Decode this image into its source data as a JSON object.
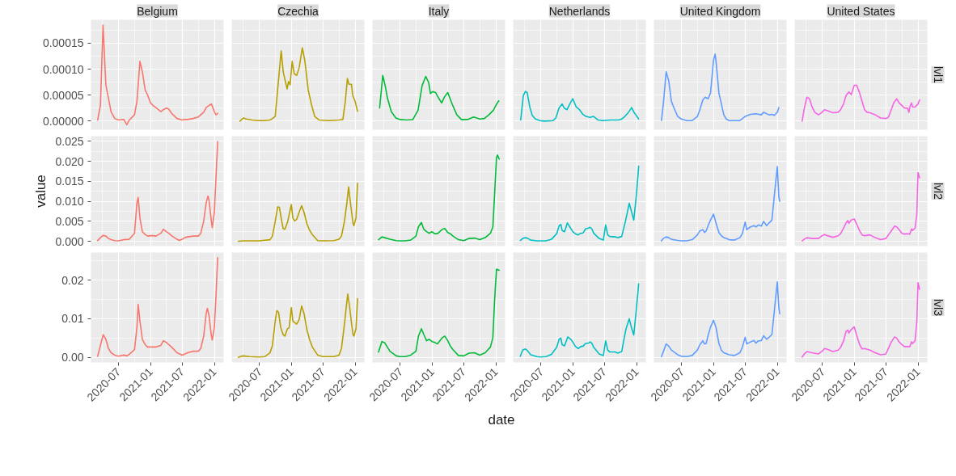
{
  "chart_data": [
    {
      "type": "line",
      "title": "Belgium",
      "color": "#F8766D",
      "grid": true,
      "tick_labels": "y",
      "xlim": [
        "2020-01-26",
        "2022-02-23"
      ],
      "xticks": [
        "2020-07",
        "2021-01",
        "2021-07",
        "2022-01"
      ],
      "ylim": [
        -1.66e-05,
        0.000195
      ],
      "yticks": [
        {
          "value": 0,
          "label": "0.00000"
        },
        {
          "value": 5e-05,
          "label": "0.00005"
        },
        {
          "value": 0.0001,
          "label": "0.00010"
        },
        {
          "value": 0.00015,
          "label": "0.00015"
        }
      ],
      "x": [
        "2020-03-04",
        "2020-03-20",
        "2020-04-04",
        "2020-04-20",
        "2020-05-05",
        "2020-05-20",
        "2020-06-10",
        "2020-07-01",
        "2020-08-01",
        "2020-08-18",
        "2020-09-01",
        "2020-10-01",
        "2020-10-15",
        "2020-11-01",
        "2020-11-15",
        "2020-12-01",
        "2020-12-15",
        "2021-01-01",
        "2021-01-15",
        "2021-02-01",
        "2021-03-01",
        "2021-03-15",
        "2021-04-01",
        "2021-04-15",
        "2021-05-01",
        "2021-06-01",
        "2021-07-01",
        "2021-07-15",
        "2021-08-01",
        "2021-09-01",
        "2021-10-01",
        "2021-11-01",
        "2021-11-15",
        "2021-12-01",
        "2021-12-15",
        "2022-01-01",
        "2022-01-10",
        "2022-01-20"
      ],
      "values": [
        2e-06,
        3e-05,
        0.000185,
        7e-05,
        4.4e-05,
        1.8e-05,
        5e-06,
        2e-06,
        3e-06,
        -7e-06,
        2e-06,
        1.2e-05,
        3.8e-05,
        0.000115,
        9.5e-05,
        6e-05,
        5e-05,
        3.5e-05,
        3e-05,
        2.6e-05,
        1.8e-05,
        2.2e-05,
        2.5e-05,
        2.3e-05,
        1.5e-05,
        5e-06,
        2e-06,
        3e-06,
        3e-06,
        5e-06,
        8e-06,
        1.7e-05,
        2.6e-05,
        3e-05,
        3.3e-05,
        1.8e-05,
        1.2e-05,
        1.5e-05
      ]
    },
    {
      "type": "line",
      "title": "Czechia",
      "color": "#B79F00",
      "grid": true,
      "tick_labels": false,
      "xlim": [
        "2020-01-26",
        "2022-02-23"
      ],
      "xticks": [
        "2020-07",
        "2021-01",
        "2021-07",
        "2022-01"
      ],
      "ylim": [
        -1.66e-05,
        0.000195
      ],
      "yticks": [
        {
          "value": 0,
          "label": null
        },
        {
          "value": 5e-05,
          "label": null
        },
        {
          "value": 0.0001,
          "label": null
        },
        {
          "value": 0.00015,
          "label": null
        }
      ],
      "x": [
        "2020-03-13",
        "2020-04-01",
        "2020-04-20",
        "2020-05-20",
        "2020-07-01",
        "2020-08-01",
        "2020-09-01",
        "2020-09-15",
        "2020-10-01",
        "2020-10-20",
        "2020-11-04",
        "2020-11-16",
        "2020-12-08",
        "2020-12-16",
        "2020-12-25",
        "2021-01-06",
        "2021-01-18",
        "2021-02-01",
        "2021-02-15",
        "2021-03-05",
        "2021-03-20",
        "2021-04-08",
        "2021-04-26",
        "2021-05-15",
        "2021-06-10",
        "2021-08-01",
        "2021-10-01",
        "2021-10-23",
        "2021-11-06",
        "2021-11-18",
        "2021-11-27",
        "2021-12-11",
        "2021-12-18",
        "2022-01-01",
        "2022-01-15"
      ],
      "values": [
        0,
        6e-06,
        4e-06,
        2e-06,
        1e-06,
        1e-06,
        2e-06,
        5e-06,
        9e-06,
        8e-05,
        0.000135,
        9.4e-05,
        6.2e-05,
        7.6e-05,
        7e-05,
        0.000115,
        9.1e-05,
        8.8e-05,
        0.000103,
        0.000141,
        0.000115,
        5.9e-05,
        3.2e-05,
        9e-06,
        2e-06,
        1e-06,
        2e-06,
        3e-06,
        3.8e-05,
        8.2e-05,
        7.1e-05,
        7.1e-05,
        5e-05,
        3.8e-05,
        1.9e-05
      ]
    },
    {
      "type": "line",
      "title": "Italy",
      "color": "#00BA38",
      "grid": true,
      "tick_labels": false,
      "xlim": [
        "2020-01-26",
        "2022-02-23"
      ],
      "xticks": [
        "2020-07",
        "2021-01",
        "2021-07",
        "2022-01"
      ],
      "ylim": [
        -1.66e-05,
        0.000195
      ],
      "yticks": [
        {
          "value": 0,
          "label": null
        },
        {
          "value": 5e-05,
          "label": null
        },
        {
          "value": 0.0001,
          "label": null
        },
        {
          "value": 0.00015,
          "label": null
        }
      ],
      "x": [
        "2020-03-07",
        "2020-03-25",
        "2020-04-08",
        "2020-04-21",
        "2020-05-13",
        "2020-06-08",
        "2020-07-04",
        "2020-08-09",
        "2020-09-13",
        "2020-10-13",
        "2020-11-05",
        "2020-11-26",
        "2020-12-13",
        "2020-12-23",
        "2021-01-04",
        "2021-01-21",
        "2021-02-08",
        "2021-02-25",
        "2021-03-14",
        "2021-04-01",
        "2021-04-27",
        "2021-05-23",
        "2021-06-18",
        "2021-07-23",
        "2021-08-27",
        "2021-10-01",
        "2021-10-27",
        "2021-11-22",
        "2021-12-18",
        "2022-01-04",
        "2022-01-18"
      ],
      "values": [
        2.5e-05,
        8.8e-05,
        6.8e-05,
        4.4e-05,
        1.8e-05,
        6e-06,
        3e-06,
        2e-06,
        3e-06,
        2.1e-05,
        6.8e-05,
        8.6e-05,
        7.4e-05,
        5.3e-05,
        5.7e-05,
        5.5e-05,
        4.4e-05,
        3.5e-05,
        4.7e-05,
        5.5e-05,
        3.2e-05,
        1.2e-05,
        3e-06,
        3e-06,
        8e-06,
        4e-06,
        5e-06,
        1.2e-05,
        2.1e-05,
        3.2e-05,
        3.9e-05
      ]
    },
    {
      "type": "line",
      "title": "Netherlands",
      "color": "#00BFC4",
      "grid": true,
      "tick_labels": false,
      "xlim": [
        "2020-01-26",
        "2022-02-23"
      ],
      "xticks": [
        "2020-07",
        "2021-01",
        "2021-07",
        "2022-01"
      ],
      "ylim": [
        -1.66e-05,
        0.000195
      ],
      "yticks": [
        {
          "value": 0,
          "label": null
        },
        {
          "value": 5e-05,
          "label": null
        },
        {
          "value": 0.0001,
          "label": null
        },
        {
          "value": 0.00015,
          "label": null
        }
      ],
      "x": [
        "2020-03-09",
        "2020-03-24",
        "2020-04-05",
        "2020-04-15",
        "2020-04-30",
        "2020-05-14",
        "2020-06-01",
        "2020-06-28",
        "2020-07-24",
        "2020-09-10",
        "2020-09-26",
        "2020-10-14",
        "2020-11-01",
        "2020-11-13",
        "2020-11-29",
        "2020-12-15",
        "2021-01-01",
        "2021-01-21",
        "2021-02-06",
        "2021-02-25",
        "2021-03-17",
        "2021-04-09",
        "2021-04-30",
        "2021-05-27",
        "2021-06-20",
        "2021-08-06",
        "2021-09-21",
        "2021-10-08",
        "2021-10-26",
        "2021-11-16",
        "2021-12-04",
        "2021-12-17",
        "2021-12-28",
        "2022-01-13"
      ],
      "values": [
        2e-06,
        4.9e-05,
        5.7e-05,
        5.5e-05,
        2.7e-05,
        1.1e-05,
        4e-06,
        1e-06,
        0,
        1e-06,
        6e-06,
        2.5e-05,
        3.3e-05,
        2.5e-05,
        2.2e-05,
        3.3e-05,
        4.3e-05,
        2.7e-05,
        2.3e-05,
        1.4e-05,
        9e-06,
        7e-06,
        9e-06,
        2e-06,
        1e-06,
        2e-06,
        2e-06,
        4e-06,
        9e-06,
        1.7e-05,
        2.6e-05,
        1.7e-05,
        1.2e-05,
        4e-06
      ]
    },
    {
      "type": "line",
      "title": "United Kingdom",
      "color": "#619CFF",
      "grid": true,
      "tick_labels": false,
      "xlim": [
        "2020-01-26",
        "2022-02-23"
      ],
      "xticks": [
        "2020-07",
        "2021-01",
        "2021-07",
        "2022-01"
      ],
      "ylim": [
        -1.66e-05,
        0.000195
      ],
      "yticks": [
        {
          "value": 0,
          "label": null
        },
        {
          "value": 5e-05,
          "label": null
        },
        {
          "value": 0.0001,
          "label": null
        },
        {
          "value": 0.00015,
          "label": null
        }
      ],
      "x": [
        "2020-03-09",
        "2020-03-20",
        "2020-04-05",
        "2020-04-20",
        "2020-05-05",
        "2020-05-20",
        "2020-06-10",
        "2020-07-01",
        "2020-08-01",
        "2020-09-01",
        "2020-10-01",
        "2020-10-15",
        "2020-11-01",
        "2020-11-15",
        "2020-12-01",
        "2020-12-15",
        "2021-01-01",
        "2021-01-10",
        "2021-01-15",
        "2021-02-01",
        "2021-03-01",
        "2021-03-15",
        "2021-04-01",
        "2021-06-01",
        "2021-07-01",
        "2021-08-01",
        "2021-09-01",
        "2021-10-01",
        "2021-10-15",
        "2021-11-01",
        "2021-11-15",
        "2021-12-01",
        "2021-12-15",
        "2022-01-01",
        "2022-01-10"
      ],
      "values": [
        1e-06,
        3.3e-05,
        9.5e-05,
        7.7e-05,
        3.8e-05,
        2.5e-05,
        9e-06,
        4e-06,
        1e-06,
        1e-06,
        9e-06,
        2.2e-05,
        4.1e-05,
        4.6e-05,
        4.3e-05,
        5.4e-05,
        0.000117,
        0.000129,
        0.000117,
        5.4e-05,
        1.2e-05,
        4e-06,
        1e-06,
        1e-06,
        9e-06,
        1.3e-05,
        1.4e-05,
        1.2e-05,
        1.7e-05,
        1.4e-05,
        1.2e-05,
        1.3e-05,
        1.1e-05,
        1.7e-05,
        2.6e-05
      ]
    },
    {
      "type": "line",
      "title": "United States",
      "annotations": [
        "lvl1"
      ],
      "color": "#F564E3",
      "grid": true,
      "tick_labels": false,
      "xlim": [
        "2020-01-26",
        "2022-02-23"
      ],
      "xticks": [
        "2020-07",
        "2021-01",
        "2021-07",
        "2022-01"
      ],
      "ylim": [
        -1.66e-05,
        0.000195
      ],
      "yticks": [
        {
          "value": 0,
          "label": null
        },
        {
          "value": 5e-05,
          "label": null
        },
        {
          "value": 0.0001,
          "label": null
        },
        {
          "value": 0.00015,
          "label": null
        }
      ],
      "x": [
        "2020-03-09",
        "2020-03-20",
        "2020-04-05",
        "2020-04-20",
        "2020-05-05",
        "2020-05-20",
        "2020-06-10",
        "2020-07-01",
        "2020-07-15",
        "2020-08-01",
        "2020-09-01",
        "2020-10-01",
        "2020-10-15",
        "2020-11-01",
        "2020-11-15",
        "2020-12-01",
        "2020-12-15",
        "2021-01-01",
        "2021-01-15",
        "2021-02-01",
        "2021-02-15",
        "2021-03-01",
        "2021-03-15",
        "2021-04-01",
        "2021-04-15",
        "2021-05-01",
        "2021-06-01",
        "2021-07-01",
        "2021-07-15",
        "2021-08-01",
        "2021-08-15",
        "2021-09-01",
        "2021-09-15",
        "2021-10-01",
        "2021-10-15",
        "2021-11-01",
        "2021-11-10",
        "2021-11-15",
        "2021-11-25",
        "2021-12-01",
        "2021-12-15",
        "2022-01-01",
        "2022-01-10"
      ],
      "values": [
        0,
        2.2e-05,
        4.6e-05,
        4.3e-05,
        2.7e-05,
        1.7e-05,
        1.2e-05,
        1.7e-05,
        2.2e-05,
        2e-05,
        1.6e-05,
        1.7e-05,
        2.2e-05,
        3.3e-05,
        4.9e-05,
        5.6e-05,
        5.1e-05,
        6.9e-05,
        6.9e-05,
        5.4e-05,
        3.8e-05,
        2.2e-05,
        1.7e-05,
        1.6e-05,
        1.4e-05,
        1.2e-05,
        6e-06,
        5e-06,
        7e-06,
        2.2e-05,
        3.5e-05,
        4.3e-05,
        3.5e-05,
        3e-05,
        2.5e-05,
        2.5e-05,
        1.7e-05,
        2.7e-05,
        3.5e-05,
        2.7e-05,
        2.7e-05,
        3.3e-05,
        4.1e-05
      ]
    },
    {
      "type": "line",
      "ylabel": "value",
      "color": "#F8766D",
      "grid": true,
      "tick_labels": "y",
      "xlim": [
        "2020-01-26",
        "2022-02-23"
      ],
      "xticks": [
        "2020-07",
        "2021-01",
        "2021-07",
        "2022-01"
      ],
      "ylim": [
        -0.0012,
        0.0263
      ],
      "yticks": [
        {
          "value": 0,
          "label": "0.000"
        },
        {
          "value": 0.005,
          "label": "0.005"
        },
        {
          "value": 0.01,
          "label": "0.010"
        },
        {
          "value": 0.015,
          "label": "0.015"
        },
        {
          "value": 0.02,
          "label": "0.020"
        },
        {
          "value": 0.025,
          "label": "0.025"
        }
      ],
      "x": [
        "2020-03-04",
        "2020-03-20",
        "2020-04-05",
        "2020-04-20",
        "2020-05-05",
        "2020-05-20",
        "2020-06-10",
        "2020-07-01",
        "2020-08-01",
        "2020-09-01",
        "2020-10-01",
        "2020-10-15",
        "2020-10-22",
        "2020-11-01",
        "2020-11-15",
        "2020-12-01",
        "2020-12-15",
        "2021-01-01",
        "2021-01-15",
        "2021-02-01",
        "2021-03-01",
        "2021-03-15",
        "2021-04-01",
        "2021-04-15",
        "2021-05-01",
        "2021-06-01",
        "2021-06-15",
        "2021-07-01",
        "2021-07-15",
        "2021-08-01",
        "2021-09-01",
        "2021-10-01",
        "2021-10-15",
        "2021-11-01",
        "2021-11-15",
        "2021-11-25",
        "2021-12-01",
        "2021-12-15",
        "2021-12-20",
        "2022-01-01",
        "2022-01-10",
        "2022-01-20"
      ],
      "values": [
        0.0002,
        0.0009,
        0.0015,
        0.0013,
        0.0007,
        0.0004,
        0.00015,
        0.0001,
        0.0004,
        0.0005,
        0.002,
        0.0096,
        0.011,
        0.0058,
        0.0024,
        0.0017,
        0.0013,
        0.0014,
        0.0014,
        0.0013,
        0.002,
        0.003,
        0.0024,
        0.002,
        0.0014,
        0.0005,
        0.0002,
        0.0005,
        0.0009,
        0.0011,
        0.0013,
        0.0013,
        0.002,
        0.005,
        0.0096,
        0.0113,
        0.0104,
        0.005,
        0.0034,
        0.0073,
        0.0157,
        0.0249
      ]
    },
    {
      "type": "line",
      "color": "#B79F00",
      "grid": true,
      "tick_labels": false,
      "xlim": [
        "2020-01-26",
        "2022-02-23"
      ],
      "xticks": [
        "2020-07",
        "2021-01",
        "2021-07",
        "2022-01"
      ],
      "ylim": [
        -0.0012,
        0.0263
      ],
      "yticks": [
        {
          "value": 0,
          "label": null
        },
        {
          "value": 0.005,
          "label": null
        },
        {
          "value": 0.01,
          "label": null
        },
        {
          "value": 0.015,
          "label": null
        },
        {
          "value": 0.02,
          "label": null
        },
        {
          "value": 0.025,
          "label": null
        }
      ],
      "x": [
        "2020-03-04",
        "2020-04-01",
        "2020-07-01",
        "2020-09-01",
        "2020-09-15",
        "2020-10-01",
        "2020-10-15",
        "2020-10-25",
        "2020-11-01",
        "2020-11-15",
        "2020-11-25",
        "2020-12-10",
        "2020-12-20",
        "2021-01-01",
        "2021-01-10",
        "2021-01-20",
        "2021-02-01",
        "2021-02-15",
        "2021-03-01",
        "2021-03-15",
        "2021-04-01",
        "2021-04-15",
        "2021-05-01",
        "2021-06-01",
        "2021-07-01",
        "2021-09-01",
        "2021-10-01",
        "2021-10-15",
        "2021-11-01",
        "2021-11-15",
        "2021-11-25",
        "2021-12-01",
        "2021-12-10",
        "2021-12-20",
        "2021-12-25",
        "2022-01-06",
        "2022-01-15"
      ],
      "values": [
        0,
        0.0001,
        0.0001,
        0.0004,
        0.0013,
        0.005,
        0.0086,
        0.0085,
        0.0066,
        0.0032,
        0.003,
        0.0047,
        0.0067,
        0.0092,
        0.0058,
        0.0051,
        0.0055,
        0.0073,
        0.0089,
        0.0072,
        0.0043,
        0.0028,
        0.0017,
        0.00015,
        0.0001,
        0.00015,
        0.0005,
        0.0013,
        0.005,
        0.0096,
        0.0136,
        0.0111,
        0.008,
        0.0045,
        0.0039,
        0.0058,
        0.0145
      ]
    },
    {
      "type": "line",
      "color": "#00BA38",
      "grid": true,
      "tick_labels": false,
      "xlim": [
        "2020-01-26",
        "2022-02-23"
      ],
      "xticks": [
        "2020-07",
        "2021-01",
        "2021-07",
        "2022-01"
      ],
      "ylim": [
        -0.0012,
        0.0263
      ],
      "yticks": [
        {
          "value": 0,
          "label": null
        },
        {
          "value": 0.005,
          "label": null
        },
        {
          "value": 0.01,
          "label": null
        },
        {
          "value": 0.015,
          "label": null
        },
        {
          "value": 0.02,
          "label": null
        },
        {
          "value": 0.025,
          "label": null
        }
      ],
      "x": [
        "2020-03-01",
        "2020-03-20",
        "2020-04-05",
        "2020-05-05",
        "2020-06-10",
        "2020-07-01",
        "2020-08-01",
        "2020-09-01",
        "2020-10-01",
        "2020-10-15",
        "2020-11-01",
        "2020-11-15",
        "2020-12-01",
        "2020-12-15",
        "2021-01-01",
        "2021-01-15",
        "2021-02-01",
        "2021-03-01",
        "2021-03-15",
        "2021-04-01",
        "2021-04-15",
        "2021-05-01",
        "2021-06-01",
        "2021-07-01",
        "2021-08-01",
        "2021-09-01",
        "2021-10-01",
        "2021-11-01",
        "2021-12-01",
        "2021-12-15",
        "2021-12-25",
        "2022-01-05",
        "2022-01-10",
        "2022-01-20"
      ],
      "values": [
        0.0004,
        0.0011,
        0.0009,
        0.0005,
        0.00015,
        0.0001,
        0.0001,
        0.0003,
        0.0013,
        0.0036,
        0.0047,
        0.003,
        0.0024,
        0.002,
        0.0024,
        0.0019,
        0.0019,
        0.003,
        0.0032,
        0.0022,
        0.0019,
        0.0013,
        0.0004,
        0.00015,
        0.0007,
        0.0008,
        0.0004,
        0.0009,
        0.002,
        0.0036,
        0.0119,
        0.021,
        0.0216,
        0.0206
      ]
    },
    {
      "type": "line",
      "color": "#00BFC4",
      "grid": true,
      "tick_labels": false,
      "xlim": [
        "2020-01-26",
        "2022-02-23"
      ],
      "xticks": [
        "2020-07",
        "2021-01",
        "2021-07",
        "2022-01"
      ],
      "ylim": [
        -0.0012,
        0.0263
      ],
      "yticks": [
        {
          "value": 0,
          "label": null
        },
        {
          "value": 0.005,
          "label": null
        },
        {
          "value": 0.01,
          "label": null
        },
        {
          "value": 0.015,
          "label": null
        },
        {
          "value": 0.02,
          "label": null
        },
        {
          "value": 0.025,
          "label": null
        }
      ],
      "x": [
        "2020-03-07",
        "2020-03-20",
        "2020-04-05",
        "2020-04-20",
        "2020-05-05",
        "2020-06-10",
        "2020-08-01",
        "2020-09-01",
        "2020-10-01",
        "2020-10-15",
        "2020-10-25",
        "2020-11-01",
        "2020-11-15",
        "2020-12-01",
        "2020-12-15",
        "2021-01-01",
        "2021-01-15",
        "2021-02-01",
        "2021-02-15",
        "2021-03-01",
        "2021-03-15",
        "2021-04-01",
        "2021-04-10",
        "2021-04-20",
        "2021-05-01",
        "2021-06-01",
        "2021-06-25",
        "2021-07-08",
        "2021-07-20",
        "2021-08-01",
        "2021-09-01",
        "2021-09-15",
        "2021-10-08",
        "2021-10-31",
        "2021-11-20",
        "2021-12-04",
        "2021-12-16",
        "2022-01-01",
        "2022-01-13"
      ],
      "values": [
        0.0002,
        0.0007,
        0.0009,
        0.0007,
        0.0003,
        0.0001,
        0.0001,
        0.0005,
        0.0019,
        0.0039,
        0.0042,
        0.0027,
        0.0024,
        0.0046,
        0.0036,
        0.0024,
        0.0019,
        0.0016,
        0.002,
        0.0021,
        0.0031,
        0.0033,
        0.0035,
        0.0031,
        0.002,
        0.0007,
        0.0003,
        0.0041,
        0.0016,
        0.0012,
        0.0011,
        0.0009,
        0.0012,
        0.0053,
        0.0095,
        0.0073,
        0.0053,
        0.012,
        0.0188
      ]
    },
    {
      "type": "line",
      "color": "#619CFF",
      "grid": true,
      "tick_labels": false,
      "xlim": [
        "2020-01-26",
        "2022-02-23"
      ],
      "xticks": [
        "2020-07",
        "2021-01",
        "2021-07",
        "2022-01"
      ],
      "ylim": [
        -0.0012,
        0.0263
      ],
      "yticks": [
        {
          "value": 0,
          "label": null
        },
        {
          "value": 0.005,
          "label": null
        },
        {
          "value": 0.01,
          "label": null
        },
        {
          "value": 0.015,
          "label": null
        },
        {
          "value": 0.02,
          "label": null
        },
        {
          "value": 0.025,
          "label": null
        }
      ],
      "x": [
        "2020-03-09",
        "2020-03-20",
        "2020-04-05",
        "2020-04-20",
        "2020-05-05",
        "2020-06-10",
        "2020-07-01",
        "2020-08-01",
        "2020-09-01",
        "2020-10-01",
        "2020-10-15",
        "2020-11-01",
        "2020-11-10",
        "2020-11-20",
        "2020-12-01",
        "2020-12-15",
        "2021-01-01",
        "2021-01-15",
        "2021-02-01",
        "2021-02-15",
        "2021-03-01",
        "2021-03-15",
        "2021-04-01",
        "2021-05-01",
        "2021-06-01",
        "2021-06-15",
        "2021-07-01",
        "2021-07-10",
        "2021-08-01",
        "2021-08-20",
        "2021-09-01",
        "2021-09-15",
        "2021-10-01",
        "2021-10-15",
        "2021-11-01",
        "2021-11-15",
        "2021-12-01",
        "2021-12-15",
        "2022-01-01",
        "2022-01-10",
        "2022-01-15"
      ],
      "values": [
        0.0001,
        0.0007,
        0.0011,
        0.0009,
        0.0005,
        0.0002,
        0.0001,
        0.0001,
        0.0004,
        0.0016,
        0.0026,
        0.0029,
        0.0022,
        0.0026,
        0.0039,
        0.0053,
        0.0068,
        0.0046,
        0.0022,
        0.0014,
        0.0009,
        0.0007,
        0.0004,
        0.0003,
        0.0009,
        0.0019,
        0.0048,
        0.0029,
        0.0036,
        0.0039,
        0.0036,
        0.0041,
        0.0038,
        0.005,
        0.0039,
        0.0046,
        0.0053,
        0.0114,
        0.0187,
        0.0111,
        0.01
      ]
    },
    {
      "type": "line",
      "annotations": [
        "lvl2"
      ],
      "color": "#F564E3",
      "grid": true,
      "tick_labels": false,
      "xlim": [
        "2020-01-26",
        "2022-02-23"
      ],
      "xticks": [
        "2020-07",
        "2021-01",
        "2021-07",
        "2022-01"
      ],
      "ylim": [
        -0.0012,
        0.0263
      ],
      "yticks": [
        {
          "value": 0,
          "label": null
        },
        {
          "value": 0.005,
          "label": null
        },
        {
          "value": 0.01,
          "label": null
        },
        {
          "value": 0.015,
          "label": null
        },
        {
          "value": 0.02,
          "label": null
        },
        {
          "value": 0.025,
          "label": null
        }
      ],
      "x": [
        "2020-03-09",
        "2020-03-20",
        "2020-04-05",
        "2020-05-05",
        "2020-06-10",
        "2020-07-01",
        "2020-07-15",
        "2020-08-01",
        "2020-09-01",
        "2020-10-01",
        "2020-10-15",
        "2020-11-01",
        "2020-11-15",
        "2020-11-25",
        "2020-12-01",
        "2020-12-15",
        "2021-01-01",
        "2021-01-15",
        "2021-02-01",
        "2021-02-15",
        "2021-03-01",
        "2021-04-01",
        "2021-05-01",
        "2021-06-01",
        "2021-07-01",
        "2021-08-01",
        "2021-08-20",
        "2021-09-01",
        "2021-09-15",
        "2021-10-01",
        "2021-10-15",
        "2021-11-01",
        "2021-11-15",
        "2021-11-25",
        "2021-12-01",
        "2021-12-15",
        "2021-12-25",
        "2022-01-01",
        "2022-01-10"
      ],
      "values": [
        0.0001,
        0.0005,
        0.0009,
        0.0007,
        0.0007,
        0.0014,
        0.0017,
        0.0014,
        0.001,
        0.0014,
        0.0019,
        0.0033,
        0.0046,
        0.0052,
        0.0045,
        0.0053,
        0.0056,
        0.0043,
        0.0026,
        0.0016,
        0.0014,
        0.0016,
        0.0009,
        0.0004,
        0.0007,
        0.0026,
        0.0038,
        0.0036,
        0.0029,
        0.002,
        0.0018,
        0.0019,
        0.0018,
        0.0031,
        0.0027,
        0.0033,
        0.0067,
        0.0172,
        0.0159
      ]
    },
    {
      "type": "line",
      "color": "#F8766D",
      "grid": true,
      "xlim": [
        "2020-01-26",
        "2022-02-23"
      ],
      "xticks": [
        "2020-07",
        "2021-01",
        "2021-07",
        "2022-01"
      ],
      "ylim": [
        -0.0013,
        0.0271
      ],
      "yticks": [
        {
          "value": 0,
          "label": "0.00"
        },
        {
          "value": 0.01,
          "label": "0.01"
        },
        {
          "value": 0.02,
          "label": "0.02"
        }
      ],
      "x": [
        "2020-03-04",
        "2020-03-20",
        "2020-04-05",
        "2020-04-20",
        "2020-05-05",
        "2020-05-20",
        "2020-06-10",
        "2020-07-01",
        "2020-08-01",
        "2020-08-20",
        "2020-09-01",
        "2020-10-01",
        "2020-10-15",
        "2020-10-22",
        "2020-11-01",
        "2020-11-15",
        "2020-12-01",
        "2020-12-15",
        "2021-01-01",
        "2021-02-01",
        "2021-03-01",
        "2021-03-15",
        "2021-04-01",
        "2021-04-15",
        "2021-05-01",
        "2021-06-01",
        "2021-07-01",
        "2021-08-01",
        "2021-09-01",
        "2021-10-01",
        "2021-10-15",
        "2021-11-01",
        "2021-11-15",
        "2021-11-22",
        "2021-12-01",
        "2021-12-15",
        "2021-12-20",
        "2022-01-01",
        "2022-01-10",
        "2022-01-20"
      ],
      "values": [
        0.0003,
        0.0031,
        0.0059,
        0.0047,
        0.0023,
        0.0012,
        0.0006,
        0.0003,
        0.0006,
        0.0004,
        0.0008,
        0.002,
        0.0078,
        0.0137,
        0.0094,
        0.0047,
        0.0033,
        0.0027,
        0.0027,
        0.0027,
        0.0031,
        0.0043,
        0.0039,
        0.0033,
        0.0027,
        0.0012,
        0.0006,
        0.0012,
        0.0016,
        0.0016,
        0.0023,
        0.0055,
        0.0113,
        0.0127,
        0.0109,
        0.0055,
        0.0045,
        0.0078,
        0.0156,
        0.0258
      ]
    },
    {
      "type": "line",
      "color": "#B79F00",
      "grid": true,
      "tick_labels": "x",
      "xlim": [
        "2020-01-26",
        "2022-02-23"
      ],
      "xticks": [
        "2020-07",
        "2021-01",
        "2021-07",
        "2022-01"
      ],
      "ylim": [
        -0.0013,
        0.0271
      ],
      "yticks": [
        {
          "value": 0,
          "label": null
        },
        {
          "value": 0.01,
          "label": null
        },
        {
          "value": 0.02,
          "label": null
        }
      ],
      "x": [
        "2020-03-04",
        "2020-03-20",
        "2020-04-05",
        "2020-05-05",
        "2020-07-01",
        "2020-08-01",
        "2020-09-01",
        "2020-09-15",
        "2020-10-01",
        "2020-10-10",
        "2020-10-20",
        "2020-11-01",
        "2020-11-15",
        "2020-11-25",
        "2020-12-10",
        "2020-12-20",
        "2021-01-01",
        "2021-01-10",
        "2021-02-01",
        "2021-02-15",
        "2021-03-01",
        "2021-03-15",
        "2021-04-01",
        "2021-04-15",
        "2021-05-01",
        "2021-06-01",
        "2021-07-01",
        "2021-08-01",
        "2021-09-01",
        "2021-10-01",
        "2021-10-15",
        "2021-11-01",
        "2021-11-15",
        "2021-11-20",
        "2021-12-01",
        "2021-12-10",
        "2021-12-20",
        "2021-12-25",
        "2022-01-06",
        "2022-01-15"
      ],
      "values": [
        0,
        0.0003,
        0.0004,
        0.0002,
        0.0001,
        0.0002,
        0.0012,
        0.0031,
        0.0094,
        0.0121,
        0.0117,
        0.0078,
        0.0059,
        0.0055,
        0.0074,
        0.0077,
        0.0129,
        0.0094,
        0.0086,
        0.0098,
        0.0133,
        0.0113,
        0.007,
        0.0047,
        0.0027,
        0.0006,
        0.0002,
        0.0002,
        0.0002,
        0.0006,
        0.0023,
        0.0086,
        0.0145,
        0.0164,
        0.0129,
        0.0094,
        0.0059,
        0.0055,
        0.0074,
        0.0152
      ]
    },
    {
      "type": "line",
      "xlabel": "date",
      "color": "#00BA38",
      "grid": true,
      "tick_labels": "x",
      "xlim": [
        "2020-01-26",
        "2022-02-23"
      ],
      "xticks": [
        "2020-07",
        "2021-01",
        "2021-07",
        "2022-01"
      ],
      "ylim": [
        -0.0013,
        0.0271
      ],
      "yticks": [
        {
          "value": 0,
          "label": null
        },
        {
          "value": 0.01,
          "label": null
        },
        {
          "value": 0.02,
          "label": null
        }
      ],
      "x": [
        "2020-03-01",
        "2020-03-20",
        "2020-04-05",
        "2020-04-20",
        "2020-05-05",
        "2020-06-10",
        "2020-07-01",
        "2020-08-01",
        "2020-09-01",
        "2020-10-01",
        "2020-10-15",
        "2020-11-01",
        "2020-11-15",
        "2020-12-01",
        "2020-12-15",
        "2021-01-01",
        "2021-01-15",
        "2021-02-01",
        "2021-03-01",
        "2021-03-15",
        "2021-04-01",
        "2021-04-15",
        "2021-05-01",
        "2021-06-01",
        "2021-07-01",
        "2021-08-01",
        "2021-09-01",
        "2021-10-01",
        "2021-11-01",
        "2021-12-01",
        "2021-12-15",
        "2021-12-25",
        "2022-01-05",
        "2022-01-20"
      ],
      "values": [
        0.0014,
        0.0041,
        0.0038,
        0.0027,
        0.0016,
        0.0004,
        0.0002,
        0.0002,
        0.0006,
        0.0016,
        0.0055,
        0.0074,
        0.0059,
        0.0043,
        0.0047,
        0.0041,
        0.0039,
        0.0035,
        0.0051,
        0.0055,
        0.0043,
        0.003,
        0.002,
        0.0005,
        0.0004,
        0.0011,
        0.0012,
        0.0006,
        0.0012,
        0.0027,
        0.0051,
        0.0148,
        0.0228,
        0.0225
      ]
    },
    {
      "type": "line",
      "color": "#00BFC4",
      "grid": true,
      "tick_labels": "x",
      "xlim": [
        "2020-01-26",
        "2022-02-23"
      ],
      "xticks": [
        "2020-07",
        "2021-01",
        "2021-07",
        "2022-01"
      ],
      "ylim": [
        -0.0013,
        0.0271
      ],
      "yticks": [
        {
          "value": 0,
          "label": null
        },
        {
          "value": 0.01,
          "label": null
        },
        {
          "value": 0.02,
          "label": null
        }
      ],
      "x": [
        "2020-03-07",
        "2020-03-20",
        "2020-04-05",
        "2020-04-20",
        "2020-05-05",
        "2020-06-10",
        "2020-07-01",
        "2020-08-01",
        "2020-09-01",
        "2020-10-01",
        "2020-10-15",
        "2020-10-25",
        "2020-11-01",
        "2020-11-15",
        "2020-12-03",
        "2020-12-20",
        "2021-01-01",
        "2021-01-15",
        "2021-02-01",
        "2021-02-15",
        "2021-03-01",
        "2021-03-15",
        "2021-04-01",
        "2021-04-10",
        "2021-04-20",
        "2021-05-01",
        "2021-06-01",
        "2021-06-25",
        "2021-07-08",
        "2021-07-20",
        "2021-08-01",
        "2021-09-01",
        "2021-09-15",
        "2021-10-08",
        "2021-10-31",
        "2021-11-20",
        "2021-12-04",
        "2021-12-16",
        "2022-01-01",
        "2022-01-13"
      ],
      "values": [
        0.0003,
        0.0019,
        0.0022,
        0.0016,
        0.0007,
        0.0002,
        0.0001,
        0.0002,
        0.0008,
        0.0026,
        0.0047,
        0.005,
        0.0033,
        0.003,
        0.0053,
        0.0047,
        0.004,
        0.0029,
        0.0023,
        0.0028,
        0.0029,
        0.0036,
        0.0037,
        0.004,
        0.0037,
        0.0026,
        0.0009,
        0.0005,
        0.0043,
        0.0019,
        0.0014,
        0.0014,
        0.0011,
        0.0015,
        0.0071,
        0.01,
        0.0075,
        0.0058,
        0.013,
        0.019
      ]
    },
    {
      "type": "line",
      "color": "#619CFF",
      "grid": true,
      "tick_labels": "x",
      "xlim": [
        "2020-01-26",
        "2022-02-23"
      ],
      "xticks": [
        "2020-07",
        "2021-01",
        "2021-07",
        "2022-01"
      ],
      "ylim": [
        -0.0013,
        0.0271
      ],
      "yticks": [
        {
          "value": 0,
          "label": null
        },
        {
          "value": 0.01,
          "label": null
        },
        {
          "value": 0.02,
          "label": null
        }
      ],
      "x": [
        "2020-03-09",
        "2020-03-20",
        "2020-04-05",
        "2020-04-20",
        "2020-05-05",
        "2020-06-10",
        "2020-07-01",
        "2020-08-01",
        "2020-09-01",
        "2020-10-01",
        "2020-10-15",
        "2020-11-01",
        "2020-11-10",
        "2020-11-20",
        "2020-12-01",
        "2020-12-15",
        "2021-01-01",
        "2021-01-15",
        "2021-02-01",
        "2021-02-15",
        "2021-03-01",
        "2021-04-01",
        "2021-05-01",
        "2021-06-01",
        "2021-06-15",
        "2021-07-01",
        "2021-07-10",
        "2021-08-01",
        "2021-08-20",
        "2021-09-01",
        "2021-09-15",
        "2021-10-01",
        "2021-10-15",
        "2021-11-01",
        "2021-11-15",
        "2021-12-01",
        "2021-12-15",
        "2022-01-01",
        "2022-01-10",
        "2022-01-15"
      ],
      "values": [
        0.0002,
        0.0015,
        0.0035,
        0.0029,
        0.0019,
        0.0007,
        0.0003,
        0.0002,
        0.0005,
        0.0019,
        0.0033,
        0.0043,
        0.0035,
        0.0036,
        0.0057,
        0.0078,
        0.0096,
        0.0078,
        0.0036,
        0.0019,
        0.0012,
        0.0007,
        0.0005,
        0.0012,
        0.0026,
        0.0052,
        0.0035,
        0.004,
        0.0044,
        0.0037,
        0.0043,
        0.0043,
        0.0056,
        0.0047,
        0.0052,
        0.0059,
        0.012,
        0.0195,
        0.0127,
        0.0113
      ]
    },
    {
      "type": "line",
      "annotations": [
        "lvl3"
      ],
      "color": "#F564E3",
      "grid": true,
      "tick_labels": "x",
      "xlim": [
        "2020-01-26",
        "2022-02-23"
      ],
      "xticks": [
        "2020-07",
        "2021-01",
        "2021-07",
        "2022-01"
      ],
      "ylim": [
        -0.0013,
        0.0271
      ],
      "yticks": [
        {
          "value": 0,
          "label": null
        },
        {
          "value": 0.01,
          "label": null
        },
        {
          "value": 0.02,
          "label": null
        }
      ],
      "x": [
        "2020-03-09",
        "2020-03-20",
        "2020-04-05",
        "2020-05-05",
        "2020-06-10",
        "2020-07-01",
        "2020-07-15",
        "2020-08-01",
        "2020-09-01",
        "2020-10-01",
        "2020-10-15",
        "2020-11-01",
        "2020-11-15",
        "2020-11-25",
        "2020-12-01",
        "2020-12-15",
        "2021-01-01",
        "2021-01-15",
        "2021-02-01",
        "2021-02-15",
        "2021-03-01",
        "2021-04-01",
        "2021-05-01",
        "2021-06-01",
        "2021-07-01",
        "2021-08-01",
        "2021-08-20",
        "2021-09-01",
        "2021-09-15",
        "2021-10-01",
        "2021-10-15",
        "2021-11-01",
        "2021-11-15",
        "2021-11-25",
        "2021-12-01",
        "2021-12-15",
        "2021-12-25",
        "2022-01-01",
        "2022-01-10"
      ],
      "values": [
        0.0001,
        0.0008,
        0.0015,
        0.0012,
        0.0009,
        0.0016,
        0.0023,
        0.0021,
        0.0015,
        0.0019,
        0.0026,
        0.0043,
        0.0067,
        0.0071,
        0.0063,
        0.0072,
        0.0079,
        0.0057,
        0.0033,
        0.0022,
        0.0023,
        0.0019,
        0.0012,
        0.0007,
        0.0009,
        0.004,
        0.0053,
        0.005,
        0.004,
        0.0033,
        0.0028,
        0.0028,
        0.0028,
        0.004,
        0.0036,
        0.0043,
        0.0092,
        0.0193,
        0.0176
      ]
    }
  ]
}
